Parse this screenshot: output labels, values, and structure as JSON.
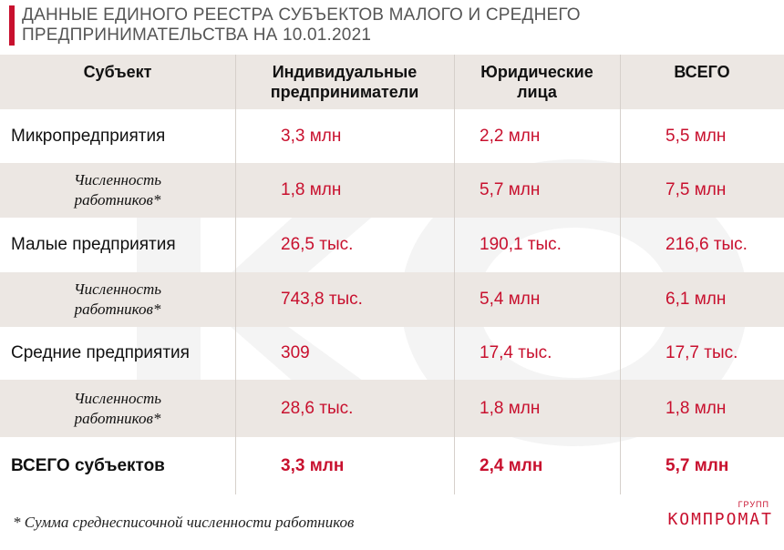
{
  "title_line1": "ДАННЫЕ ЕДИНОГО РЕЕСТРА СУБЪЕКТОВ МАЛОГО И СРЕДНЕГО",
  "title_line2": "ПРЕДПРИНИМАТЕЛЬСТВА НА 10.01.2021",
  "colors": {
    "accent": "#c8102e",
    "shade": "#ece7e3"
  },
  "chart_data": {
    "type": "table",
    "headers": {
      "subject": "Субъект",
      "ip_line1": "Индивидуальные",
      "ip_line2": "предприниматели",
      "ul_line1": "Юридические",
      "ul_line2": "лица",
      "total": "ВСЕГО"
    },
    "rows": [
      {
        "label": "Микропредприятия",
        "label2": "",
        "sub": false,
        "bold": false,
        "ip": "3,3 млн",
        "ul": "2,2 млн",
        "total": "5,5 млн"
      },
      {
        "label": "Численность",
        "label2": "работников*",
        "sub": true,
        "bold": false,
        "ip": "1,8 млн",
        "ul": "5,7 млн",
        "total": "7,5 млн"
      },
      {
        "label": "Малые предприятия",
        "label2": "",
        "sub": false,
        "bold": false,
        "ip": "26,5 тыс.",
        "ul": "190,1 тыс.",
        "total": "216,6 тыс."
      },
      {
        "label": "Численность",
        "label2": "работников*",
        "sub": true,
        "bold": false,
        "ip": "743,8 тыс.",
        "ul": "5,4 млн",
        "total": "6,1 млн"
      },
      {
        "label": "Средние предприятия",
        "label2": "",
        "sub": false,
        "bold": false,
        "ip": "309",
        "ul": "17,4 тыс.",
        "total": "17,7 тыс."
      },
      {
        "label": "Численность",
        "label2": "работников*",
        "sub": true,
        "bold": false,
        "ip": "28,6 тыс.",
        "ul": "1,8 млн",
        "total": "1,8 млн"
      },
      {
        "label": "ВСЕГО субъектов",
        "label2": "",
        "sub": false,
        "bold": true,
        "ip": "3,3 млн",
        "ul": "2,4 млн",
        "total": "5,7 млн"
      }
    ]
  },
  "footnote": "* Сумма среднесписочной численности работников",
  "logo": {
    "sup": "ГРУПП",
    "text": "КОМПРОМАТ"
  }
}
